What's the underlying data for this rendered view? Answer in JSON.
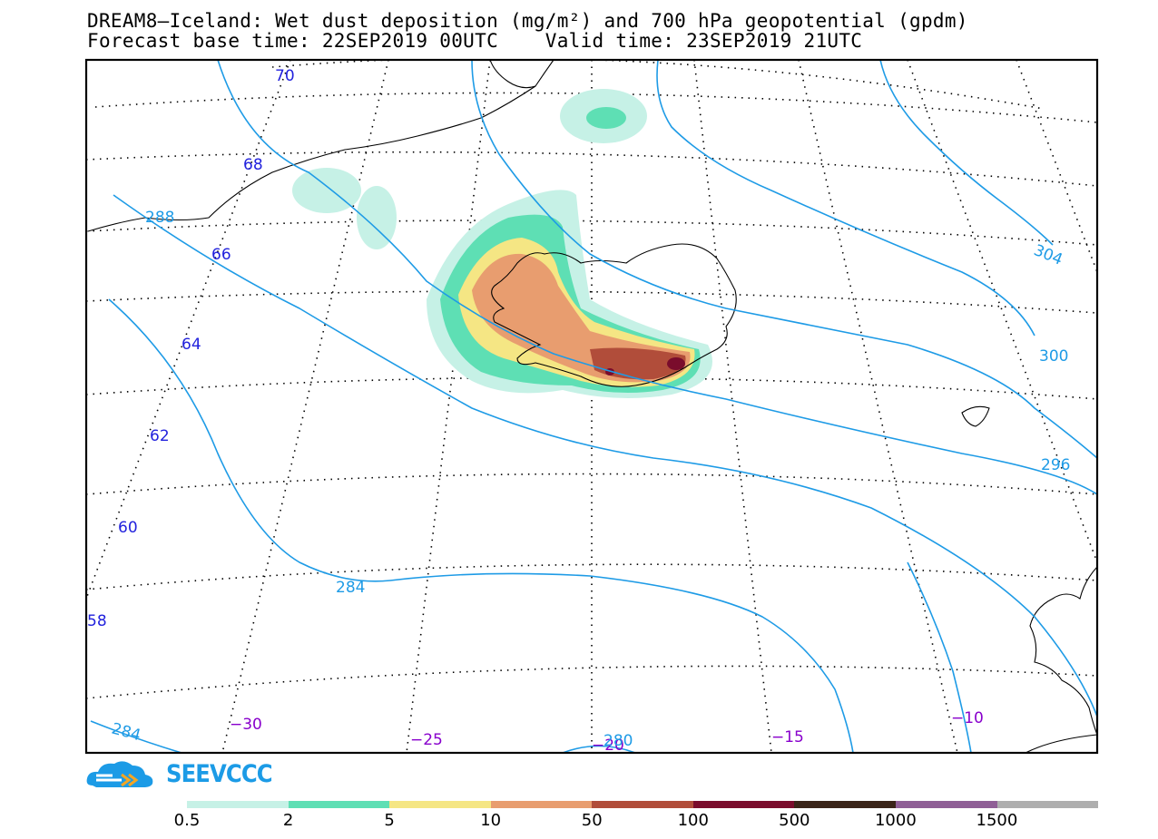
{
  "header": {
    "title_line1": "DREAM8–Iceland: Wet dust deposition (mg/m²) and 700 hPa geopotential (gpdm)",
    "title_line2": "Forecast base time: 22SEP2019 00UTC    Valid time: 23SEP2019 21UTC"
  },
  "map": {
    "region": "Iceland and North Atlantic",
    "latitude_labels": [
      "70",
      "68",
      "66",
      "64",
      "62",
      "60",
      "58"
    ],
    "longitude_labels": [
      "−30",
      "−25",
      "−20",
      "−15",
      "−10"
    ],
    "contour_labels": [
      "304",
      "300",
      "296",
      "288",
      "284",
      "284",
      "280"
    ],
    "colors": {
      "lat_label": "#2222dd",
      "lon_label": "#8800cc",
      "contour": "#1e9be6",
      "frame": "#000000"
    }
  },
  "logo": {
    "text": "SEEVCCC",
    "color": "#1c9be6"
  },
  "colorbar": {
    "colors": [
      "#c6f1e6",
      "#5edfb4",
      "#f5e684",
      "#e89d6f",
      "#b14d3a",
      "#7a0c2c",
      "#3a2418",
      "#8f5f96",
      "#aeaeae"
    ],
    "labels": [
      "0.5",
      "2",
      "5",
      "10",
      "50",
      "100",
      "500",
      "1000",
      "1500"
    ]
  }
}
